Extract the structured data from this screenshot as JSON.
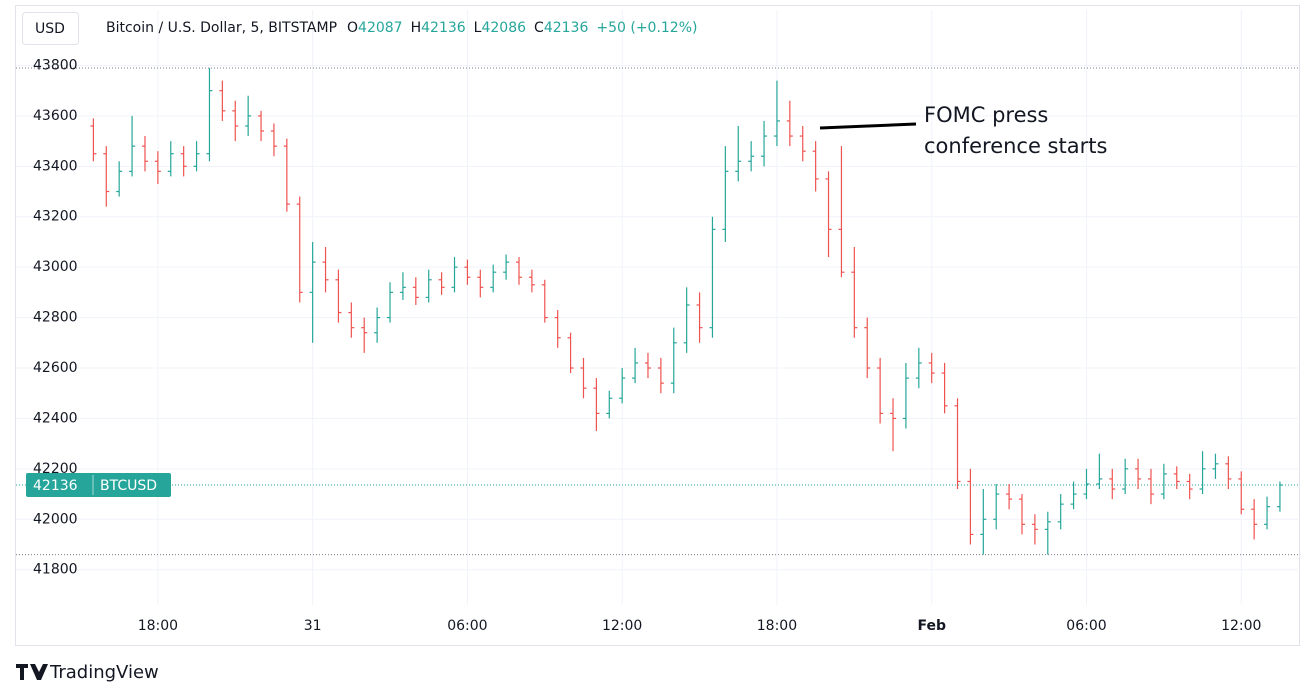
{
  "chart_data": {
    "type": "ohlc",
    "title": "Bitcoin / U.S. Dollar, 5, BITSTAMP",
    "currency": "USD",
    "symbol": "BTCUSD",
    "ohlc_legend": [
      {
        "label": "O",
        "value": 42087
      },
      {
        "label": "H",
        "value": 42136
      },
      {
        "label": "L",
        "value": 42086
      },
      {
        "label": "C",
        "value": 42136
      }
    ],
    "change": "+50 (+0.12%)",
    "annotation": [
      "FOMC press",
      "conference starts"
    ],
    "brand": "TradingView",
    "up_color": "#26a69a",
    "down_color": "#ef5350",
    "grid": true,
    "xlim": [
      12.5,
      62.2
    ],
    "ylim": [
      41660,
      44020
    ],
    "xticks": [
      {
        "value": 18,
        "label": "18:00"
      },
      {
        "value": 24,
        "label": "31"
      },
      {
        "value": 30,
        "label": "06:00"
      },
      {
        "value": 36,
        "label": "12:00"
      },
      {
        "value": 42,
        "label": "18:00"
      },
      {
        "value": 48,
        "label": "Feb"
      },
      {
        "value": 54,
        "label": "06:00"
      },
      {
        "value": 60,
        "label": "12:00"
      }
    ],
    "yticks": [
      41800,
      42000,
      42200,
      42400,
      42600,
      42800,
      43000,
      43200,
      43400,
      43600,
      43800
    ],
    "x": [
      15.5,
      16,
      16.5,
      17,
      17.5,
      18,
      18.5,
      19,
      19.5,
      20,
      20.5,
      21,
      21.5,
      22,
      22.5,
      23,
      23.5,
      24,
      24.5,
      25,
      25.5,
      26,
      26.5,
      27,
      27.5,
      28,
      28.5,
      29,
      29.5,
      30,
      30.5,
      31,
      31.5,
      32,
      32.5,
      33,
      33.5,
      34,
      34.5,
      35,
      35.5,
      36,
      36.5,
      37,
      37.5,
      38,
      38.5,
      39,
      39.5,
      40,
      40.5,
      41,
      41.5,
      42,
      42.5,
      43,
      43.5,
      44,
      44.5,
      45,
      45.5,
      46,
      46.5,
      47,
      47.5,
      48,
      48.5,
      49,
      49.5,
      50,
      50.5,
      51,
      51.5,
      52,
      52.5,
      53,
      53.5,
      54,
      54.5,
      55,
      55.5,
      56,
      56.5,
      57,
      57.5,
      58,
      58.5,
      59,
      59.5,
      60,
      60.5,
      61,
      61.5
    ],
    "open": [
      43560,
      43450,
      43300,
      43380,
      43480,
      43420,
      43380,
      43450,
      43400,
      43450,
      43700,
      43620,
      43560,
      43600,
      43540,
      43480,
      43250,
      42900,
      43020,
      42950,
      42820,
      42760,
      42740,
      42800,
      42900,
      42920,
      42880,
      42950,
      42920,
      43000,
      42960,
      42920,
      42980,
      43020,
      42960,
      42930,
      42800,
      42720,
      42600,
      42520,
      42420,
      42480,
      42560,
      42620,
      42600,
      42540,
      42700,
      42850,
      42760,
      43150,
      43380,
      43420,
      43440,
      43520,
      43580,
      43520,
      43460,
      43350,
      43150,
      42980,
      42760,
      42600,
      42420,
      42400,
      42560,
      42620,
      42580,
      42450,
      42150,
      41940,
      42000,
      42100,
      42080,
      41980,
      41960,
      41990,
      42060,
      42100,
      42140,
      42160,
      42120,
      42200,
      42160,
      42100,
      42180,
      42150,
      42120,
      42200,
      42220,
      42160,
      42040,
      41980,
      42050
    ],
    "high": [
      43590,
      43480,
      43420,
      43600,
      43520,
      43460,
      43500,
      43480,
      43500,
      43790,
      43740,
      43660,
      43680,
      43620,
      43570,
      43510,
      43280,
      43100,
      43080,
      42990,
      42860,
      42800,
      42840,
      42940,
      42980,
      42960,
      42990,
      42980,
      43040,
      43030,
      42990,
      43010,
      43050,
      43040,
      42990,
      42950,
      42830,
      42740,
      42640,
      42560,
      42510,
      42600,
      42680,
      42660,
      42640,
      42760,
      42920,
      42900,
      43200,
      43480,
      43560,
      43500,
      43580,
      43740,
      43660,
      43560,
      43500,
      43380,
      43480,
      43080,
      42800,
      42640,
      42480,
      42620,
      42680,
      42660,
      42620,
      42480,
      42200,
      42120,
      42140,
      42140,
      42100,
      42020,
      42030,
      42100,
      42150,
      42200,
      42260,
      42200,
      42240,
      42240,
      42200,
      42220,
      42210,
      42180,
      42270,
      42260,
      42250,
      42190,
      42080,
      42090,
      42150
    ],
    "low": [
      43420,
      43240,
      43280,
      43360,
      43380,
      43330,
      43360,
      43360,
      43380,
      43420,
      43580,
      43500,
      43520,
      43500,
      43440,
      43220,
      42860,
      42700,
      42900,
      42780,
      42720,
      42660,
      42700,
      42780,
      42870,
      42850,
      42860,
      42890,
      42900,
      42930,
      42880,
      42900,
      42950,
      42930,
      42900,
      42780,
      42680,
      42580,
      42480,
      42350,
      42400,
      42460,
      42540,
      42560,
      42500,
      42500,
      42660,
      42700,
      42720,
      43100,
      43340,
      43380,
      43400,
      43480,
      43480,
      43420,
      43300,
      43040,
      42960,
      42720,
      42560,
      42380,
      42270,
      42360,
      42520,
      42540,
      42420,
      42120,
      41900,
      41860,
      41960,
      42040,
      41940,
      41900,
      41860,
      41960,
      42040,
      42080,
      42120,
      42080,
      42100,
      42120,
      42060,
      42080,
      42120,
      42080,
      42100,
      42160,
      42120,
      42020,
      41920,
      41960,
      42030
    ],
    "close": [
      43450,
      43300,
      43380,
      43480,
      43420,
      43380,
      43450,
      43400,
      43450,
      43700,
      43620,
      43560,
      43600,
      43540,
      43480,
      43250,
      42900,
      43020,
      42950,
      42820,
      42760,
      42740,
      42800,
      42900,
      42920,
      42880,
      42950,
      42920,
      43000,
      42960,
      42920,
      42980,
      43020,
      42960,
      42930,
      42800,
      42720,
      42600,
      42520,
      42420,
      42480,
      42560,
      42620,
      42600,
      42540,
      42700,
      42850,
      42760,
      43150,
      43380,
      43420,
      43440,
      43520,
      43580,
      43520,
      43460,
      43350,
      43150,
      42980,
      42760,
      42600,
      42420,
      42400,
      42560,
      42620,
      42580,
      42450,
      42150,
      41940,
      42000,
      42100,
      42080,
      41980,
      41960,
      41990,
      42060,
      42100,
      42140,
      42160,
      42120,
      42200,
      42160,
      42100,
      42180,
      42150,
      42120,
      42200,
      42220,
      42160,
      42040,
      41980,
      42050,
      42136
    ]
  }
}
